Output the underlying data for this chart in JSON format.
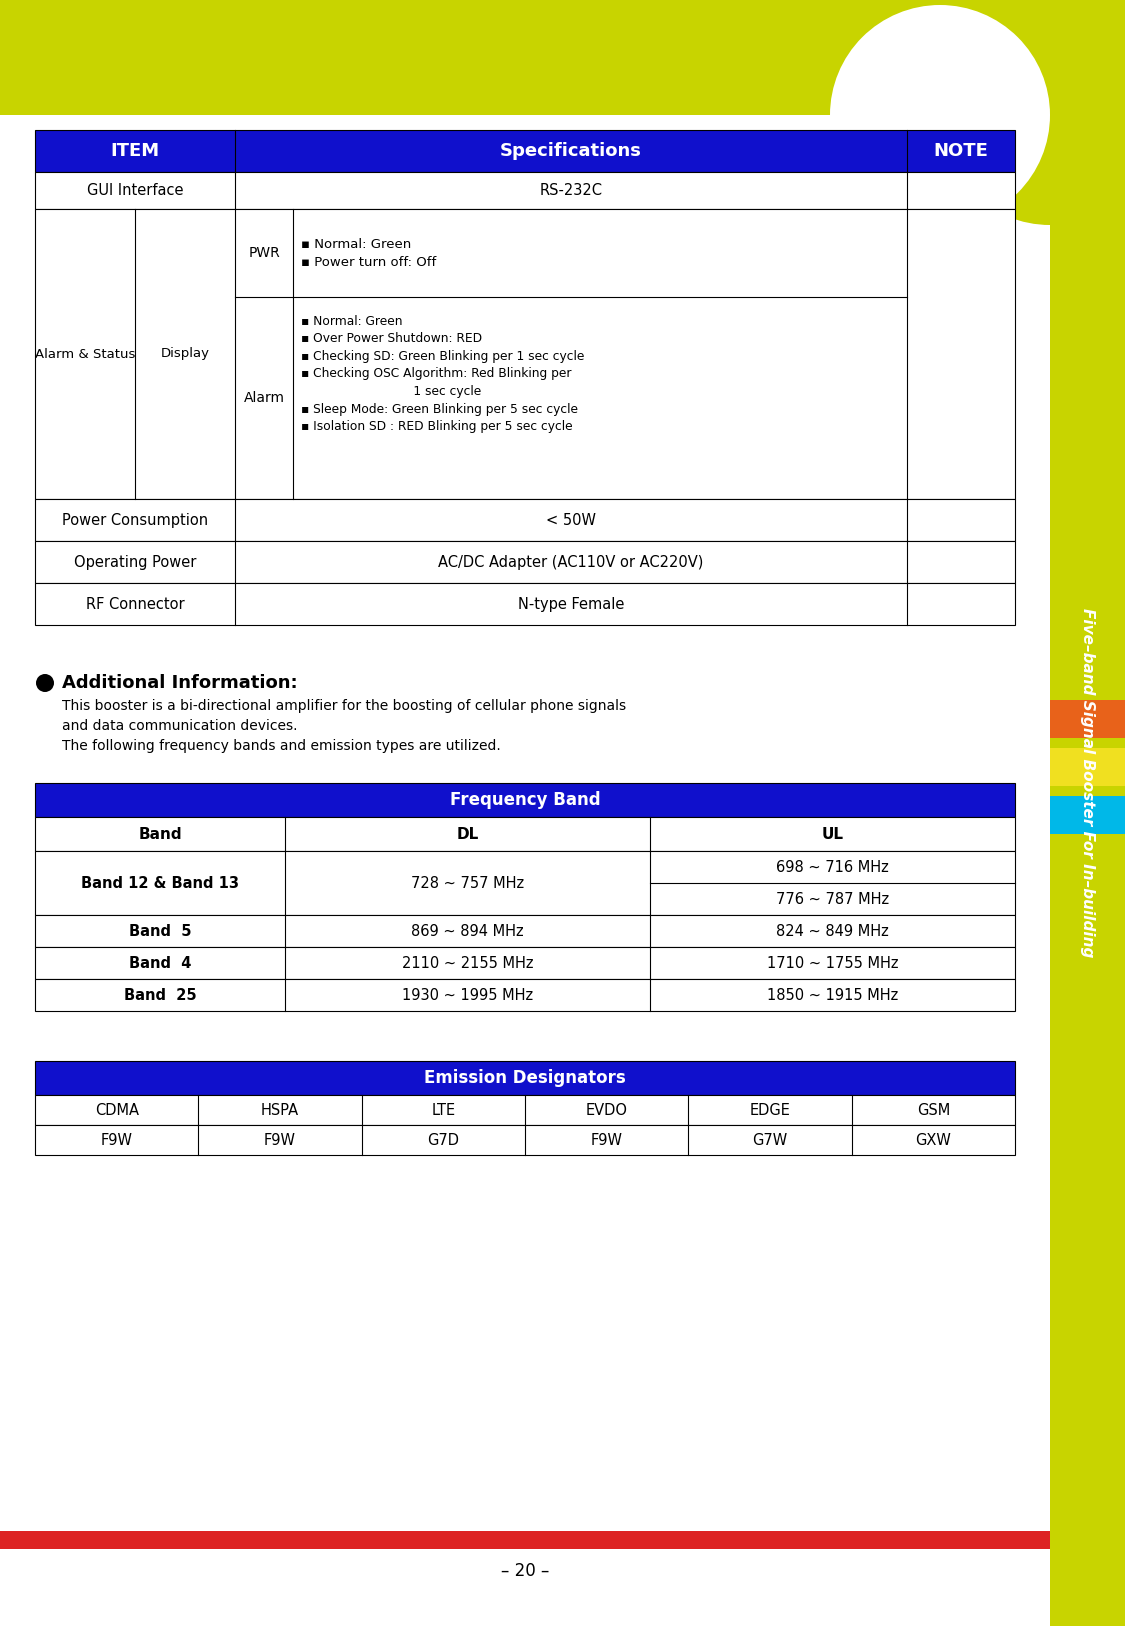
{
  "bg_color": "#ffffff",
  "lime": "#c8d400",
  "blue": "#1010cc",
  "red_bar": "#dd2222",
  "sidebar_colors": [
    "#e8621a",
    "#f0e020",
    "#00b8e8"
  ],
  "title_vertical": "Five–band Signal Booster For In–building",
  "page_number": "– 20 –",
  "pwr_text": "▪ Normal: Green\n▪ Power turn off: Off",
  "alarm_text": "▪ Normal: Green\n▪ Over Power Shutdown: RED\n▪ Checking SD: Green Blinking per 1 sec cycle\n▪ Checking OSC Algorithm: Red Blinking per\n                             1 sec cycle\n▪ Sleep Mode: Green Blinking per 5 sec cycle\n▪ Isolation SD : RED Blinking per 5 sec cycle",
  "additional_text1": "This booster is a bi-directional amplifier for the boosting of cellular phone signals",
  "additional_text2": "and data communication devices.",
  "additional_text3": "The following frequency bands and emission types are utilized.",
  "freq_band_header": "Frequency Band",
  "emission_header": "Emission Designators",
  "emission_col_headers": [
    "CDMA",
    "HSPA",
    "LTE",
    "EVDO",
    "EDGE",
    "GSM"
  ],
  "emission_values": [
    "F9W",
    "F9W",
    "G7D",
    "F9W",
    "G7W",
    "GXW"
  ]
}
